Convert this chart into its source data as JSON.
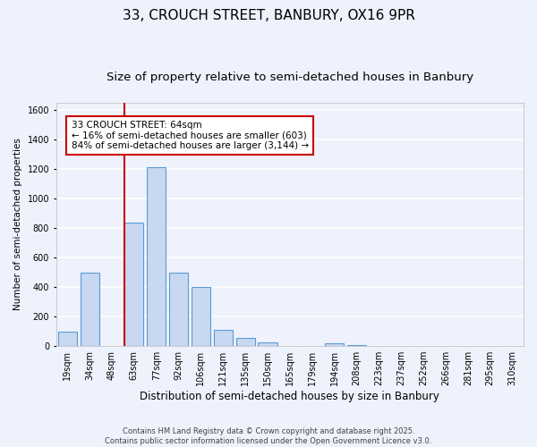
{
  "title1": "33, CROUCH STREET, BANBURY, OX16 9PR",
  "title2": "Size of property relative to semi-detached houses in Banbury",
  "xlabel": "Distribution of semi-detached houses by size in Banbury",
  "ylabel": "Number of semi-detached properties",
  "categories": [
    "19sqm",
    "34sqm",
    "48sqm",
    "63sqm",
    "77sqm",
    "92sqm",
    "106sqm",
    "121sqm",
    "135sqm",
    "150sqm",
    "165sqm",
    "179sqm",
    "194sqm",
    "208sqm",
    "223sqm",
    "237sqm",
    "252sqm",
    "266sqm",
    "281sqm",
    "295sqm",
    "310sqm"
  ],
  "values": [
    100,
    495,
    0,
    835,
    1215,
    495,
    400,
    110,
    55,
    25,
    0,
    0,
    20,
    5,
    0,
    0,
    0,
    0,
    0,
    0,
    0
  ],
  "bar_color": "#c8d8f0",
  "bar_edge_color": "#5b9bd5",
  "vline_color": "#cc0000",
  "annotation_title": "33 CROUCH STREET: 64sqm",
  "annotation_line1": "← 16% of semi-detached houses are smaller (603)",
  "annotation_line2": "84% of semi-detached houses are larger (3,144) →",
  "annotation_box_color": "#ffffff",
  "annotation_box_edge": "#cc0000",
  "ylim": [
    0,
    1650
  ],
  "yticks": [
    0,
    200,
    400,
    600,
    800,
    1000,
    1200,
    1400,
    1600
  ],
  "footer1": "Contains HM Land Registry data © Crown copyright and database right 2025.",
  "footer2": "Contains public sector information licensed under the Open Government Licence v3.0.",
  "background_color": "#eef2fc",
  "grid_color": "#ffffff",
  "title1_fontsize": 11,
  "title2_fontsize": 9.5,
  "xlabel_fontsize": 8.5,
  "ylabel_fontsize": 7.5,
  "tick_fontsize": 7,
  "annot_fontsize": 7.5,
  "footer_fontsize": 6
}
